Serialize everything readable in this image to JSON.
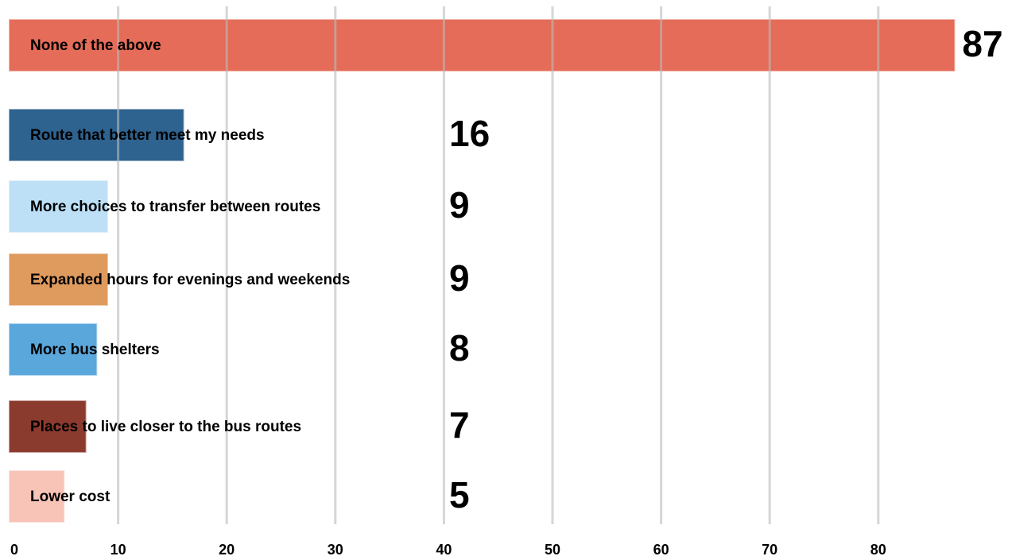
{
  "chart_data": {
    "type": "bar",
    "orientation": "horizontal",
    "categories": [
      "None of the above",
      "Route that better meet my needs",
      "More choices to transfer between routes",
      "Expanded hours for evenings and weekends",
      "More bus shelters",
      "Places to live closer to the bus routes",
      "Lower cost"
    ],
    "values": [
      87,
      16,
      9,
      9,
      8,
      7,
      5
    ],
    "colors": [
      "#e46c58",
      "#2e628f",
      "#bde0f7",
      "#df9a5e",
      "#5aa7dc",
      "#8b3b2e",
      "#f8c4b8"
    ],
    "xlim": [
      0,
      90
    ],
    "xticks": [
      0,
      10,
      20,
      30,
      40,
      50,
      60,
      70,
      80
    ],
    "grid": true
  }
}
